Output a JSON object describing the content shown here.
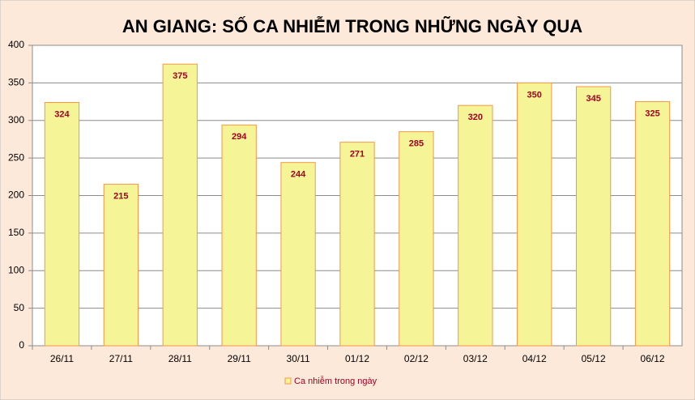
{
  "chart_data": {
    "type": "bar",
    "title": "AN GIANG: SỐ CA NHIỄM TRONG NHỮNG NGÀY QUA",
    "categories": [
      "26/11",
      "27/11",
      "28/11",
      "29/11",
      "30/11",
      "01/12",
      "02/12",
      "03/12",
      "04/12",
      "05/12",
      "06/12"
    ],
    "series": [
      {
        "name": "Ca nhiễm trong ngày",
        "color": "#f5f597",
        "values": [
          324,
          215,
          375,
          294,
          244,
          271,
          285,
          320,
          350,
          345,
          325
        ]
      }
    ],
    "ylim": [
      0,
      400
    ],
    "yticks": [
      0,
      50,
      100,
      150,
      200,
      250,
      300,
      350,
      400
    ],
    "grid": true,
    "legend": "bottom"
  }
}
